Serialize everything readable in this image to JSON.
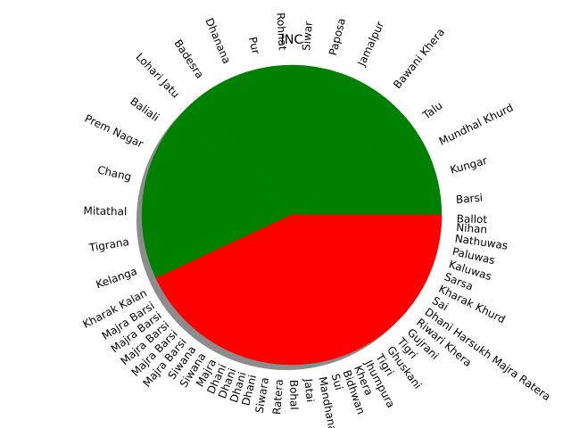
{
  "chart_data": {
    "type": "pie",
    "title": "INC",
    "shadow": true,
    "start_angle_deg": 0,
    "direction": "counterclockwise",
    "colors": {
      "green": "#008000",
      "red": "#ff0000",
      "shadow": "#808080"
    },
    "slices": [
      {
        "label": "Barsi",
        "value": 2.3,
        "color": "green"
      },
      {
        "label": "Kungar",
        "value": 2.3,
        "color": "green"
      },
      {
        "label": "Mundhal Khurd",
        "value": 2.3,
        "color": "green"
      },
      {
        "label": "Talu",
        "value": 2.3,
        "color": "green"
      },
      {
        "label": "Bawani Khera",
        "value": 4.0,
        "color": "green"
      },
      {
        "label": "Jamalpur",
        "value": 2.3,
        "color": "green"
      },
      {
        "label": "Paposa",
        "value": 2.3,
        "color": "green"
      },
      {
        "label": "Siwar",
        "value": 1.8,
        "color": "green"
      },
      {
        "label": "Rohnat",
        "value": 1.8,
        "color": "green"
      },
      {
        "label": "Pur",
        "value": 2.3,
        "color": "green"
      },
      {
        "label": "Dhanana",
        "value": 2.3,
        "color": "green"
      },
      {
        "label": "Badesra",
        "value": 2.3,
        "color": "green"
      },
      {
        "label": "Lohari Jatu",
        "value": 2.3,
        "color": "green"
      },
      {
        "label": "Baliali",
        "value": 2.3,
        "color": "green"
      },
      {
        "label": "Prem Nagar",
        "value": 2.3,
        "color": "green"
      },
      {
        "label": "Chang",
        "value": 3.0,
        "color": "green"
      },
      {
        "label": "Mitathal",
        "value": 2.3,
        "color": "green"
      },
      {
        "label": "Tigrana",
        "value": 2.3,
        "color": "green"
      },
      {
        "label": "Kelanga",
        "value": 2.3,
        "color": "green"
      },
      {
        "label": "Kharak Kalan",
        "value": 1.3,
        "color": "red"
      },
      {
        "label": "Majra Barsi",
        "value": 0.9,
        "color": "red"
      },
      {
        "label": "Majra Barsi",
        "value": 0.9,
        "color": "red"
      },
      {
        "label": "Majra Barsi",
        "value": 0.9,
        "color": "red"
      },
      {
        "label": "Majra Barsi",
        "value": 0.9,
        "color": "red"
      },
      {
        "label": "Majra Barsi",
        "value": 0.9,
        "color": "red"
      },
      {
        "label": "Siwana",
        "value": 0.9,
        "color": "red"
      },
      {
        "label": "Siwana",
        "value": 0.9,
        "color": "red"
      },
      {
        "label": "Majra",
        "value": 0.9,
        "color": "red"
      },
      {
        "label": "Dhani",
        "value": 0.8,
        "color": "red"
      },
      {
        "label": "Dhani",
        "value": 0.8,
        "color": "red"
      },
      {
        "label": "Dhani",
        "value": 0.8,
        "color": "red"
      },
      {
        "label": "Dhani",
        "value": 0.8,
        "color": "red"
      },
      {
        "label": "Siwara",
        "value": 1.1,
        "color": "red"
      },
      {
        "label": "Ratera",
        "value": 1.1,
        "color": "red"
      },
      {
        "label": "Bohal",
        "value": 1.1,
        "color": "red"
      },
      {
        "label": "Jatai",
        "value": 1.1,
        "color": "red"
      },
      {
        "label": "Mandhana",
        "value": 1.1,
        "color": "red"
      },
      {
        "label": "Sui",
        "value": 0.9,
        "color": "red"
      },
      {
        "label": "Bidhwan",
        "value": 0.9,
        "color": "red"
      },
      {
        "label": "Khera",
        "value": 0.9,
        "color": "red"
      },
      {
        "label": "Jhumpura",
        "value": 0.9,
        "color": "red"
      },
      {
        "label": "Tigri",
        "value": 1.0,
        "color": "red"
      },
      {
        "label": "Ghuskani",
        "value": 1.0,
        "color": "red"
      },
      {
        "label": "Tigri",
        "value": 1.0,
        "color": "red"
      },
      {
        "label": "Gujrani",
        "value": 1.0,
        "color": "red"
      },
      {
        "label": "Riwari Khera",
        "value": 1.0,
        "color": "red"
      },
      {
        "label": "Dhani Harsukh Majra Ratera",
        "value": 1.0,
        "color": "red"
      },
      {
        "label": "Sai",
        "value": 1.0,
        "color": "red"
      },
      {
        "label": "Kharak Khurd",
        "value": 1.0,
        "color": "red"
      },
      {
        "label": "Sarsa",
        "value": 1.0,
        "color": "red"
      },
      {
        "label": "Kaluwas",
        "value": 1.0,
        "color": "red"
      },
      {
        "label": "Paluwas",
        "value": 1.0,
        "color": "red"
      },
      {
        "label": "Nathuwas",
        "value": 1.0,
        "color": "red"
      },
      {
        "label": "Nihan",
        "value": 0.7,
        "color": "red"
      },
      {
        "label": "Ballot",
        "value": 0.6,
        "color": "red"
      }
    ]
  }
}
